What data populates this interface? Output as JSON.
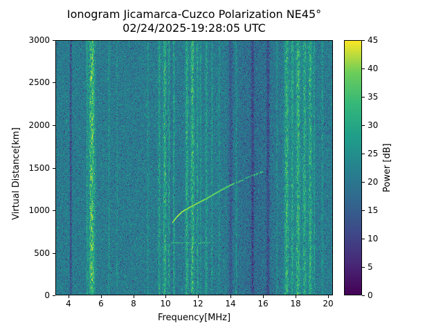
{
  "chart_data": {
    "type": "heatmap",
    "title": "Ionogram Jicamarca-Cuzco Polarization NE45°",
    "subtitle": "02/24/2025-19:28:05 UTC",
    "xlabel": "Frequency[MHz]",
    "ylabel": "Virtual Distance[km]",
    "colorbar_label": "Power [dB]",
    "colormap": "viridis",
    "xlim": [
      3.2,
      20.3
    ],
    "ylim": [
      0,
      3000
    ],
    "clim": [
      0,
      45
    ],
    "x_ticks": [
      4,
      6,
      8,
      10,
      12,
      14,
      16,
      18,
      20
    ],
    "y_ticks": [
      0,
      500,
      1000,
      1500,
      2000,
      2500,
      3000
    ],
    "colorbar_ticks": [
      0,
      5,
      10,
      15,
      20,
      25,
      30,
      35,
      40,
      45
    ],
    "noise": {
      "mean_db": 21,
      "spread_db": 6.5
    },
    "rfi_bands": [
      {
        "freq": 5.15,
        "width": 0.05,
        "amp": 6
      },
      {
        "freq": 5.45,
        "width": 0.18,
        "amp": 14
      },
      {
        "freq": 6.5,
        "width": 0.05,
        "amp": 4
      },
      {
        "freq": 7.0,
        "width": 0.05,
        "amp": 3
      },
      {
        "freq": 8.9,
        "width": 0.05,
        "amp": 4
      },
      {
        "freq": 9.6,
        "width": 0.08,
        "amp": 7
      },
      {
        "freq": 9.95,
        "width": 0.12,
        "amp": 11
      },
      {
        "freq": 10.2,
        "width": 0.08,
        "amp": 9
      },
      {
        "freq": 10.5,
        "width": 0.06,
        "amp": 7
      },
      {
        "freq": 11.3,
        "width": 0.1,
        "amp": 9
      },
      {
        "freq": 11.65,
        "width": 0.12,
        "amp": 11
      },
      {
        "freq": 11.95,
        "width": 0.07,
        "amp": 7
      },
      {
        "freq": 12.15,
        "width": 0.06,
        "amp": 5
      },
      {
        "freq": 12.5,
        "width": 0.08,
        "amp": 6
      },
      {
        "freq": 12.85,
        "width": 0.05,
        "amp": 5
      },
      {
        "freq": 13.3,
        "width": 0.05,
        "amp": 4
      },
      {
        "freq": 14.35,
        "width": 0.05,
        "amp": 5
      },
      {
        "freq": 16.85,
        "width": 0.05,
        "amp": 4
      },
      {
        "freq": 17.45,
        "width": 0.15,
        "amp": 10
      },
      {
        "freq": 17.8,
        "width": 0.1,
        "amp": 8
      },
      {
        "freq": 18.15,
        "width": 0.15,
        "amp": 11
      },
      {
        "freq": 18.55,
        "width": 0.12,
        "amp": 9
      },
      {
        "freq": 18.9,
        "width": 0.12,
        "amp": 10
      },
      {
        "freq": 19.15,
        "width": 0.06,
        "amp": 6
      },
      {
        "freq": 19.65,
        "width": 0.06,
        "amp": 4
      }
    ],
    "dark_bands": [
      {
        "freq": 4.15,
        "width": 0.06,
        "amp": 9
      },
      {
        "freq": 10.15,
        "width": 0.25,
        "amp": 3
      },
      {
        "freq": 14.0,
        "width": 0.12,
        "amp": 6
      },
      {
        "freq": 15.35,
        "width": 0.09,
        "amp": 7
      },
      {
        "freq": 15.5,
        "width": 1.2,
        "amp": 3
      },
      {
        "freq": 16.3,
        "width": 0.1,
        "amp": 7
      }
    ],
    "echo_trace": {
      "points": [
        [
          10.4,
          855
        ],
        [
          10.7,
          930
        ],
        [
          11.0,
          985
        ],
        [
          11.5,
          1040
        ],
        [
          12.0,
          1090
        ],
        [
          12.5,
          1140
        ],
        [
          13.0,
          1195
        ],
        [
          13.5,
          1250
        ],
        [
          14.0,
          1300
        ],
        [
          14.5,
          1340
        ],
        [
          15.0,
          1385
        ],
        [
          15.5,
          1425
        ],
        [
          16.05,
          1460
        ]
      ],
      "power_start_db": 45,
      "power_end_db": 37,
      "dash_start_freq": 14.2
    },
    "secondary_echo": {
      "distance_km": 625,
      "freq_range": [
        10.3,
        12.7
      ],
      "power_db": 33
    },
    "colormap_stops": [
      {
        "t": 0.0,
        "rgb": [
          68,
          1,
          84
        ]
      },
      {
        "t": 0.125,
        "rgb": [
          72,
          40,
          120
        ]
      },
      {
        "t": 0.25,
        "rgb": [
          62,
          74,
          137
        ]
      },
      {
        "t": 0.375,
        "rgb": [
          49,
          104,
          142
        ]
      },
      {
        "t": 0.5,
        "rgb": [
          38,
          130,
          142
        ]
      },
      {
        "t": 0.625,
        "rgb": [
          31,
          158,
          137
        ]
      },
      {
        "t": 0.75,
        "rgb": [
          53,
          183,
          121
        ]
      },
      {
        "t": 0.875,
        "rgb": [
          109,
          205,
          89
        ]
      },
      {
        "t": 1.0,
        "rgb": [
          253,
          231,
          37
        ]
      }
    ]
  }
}
